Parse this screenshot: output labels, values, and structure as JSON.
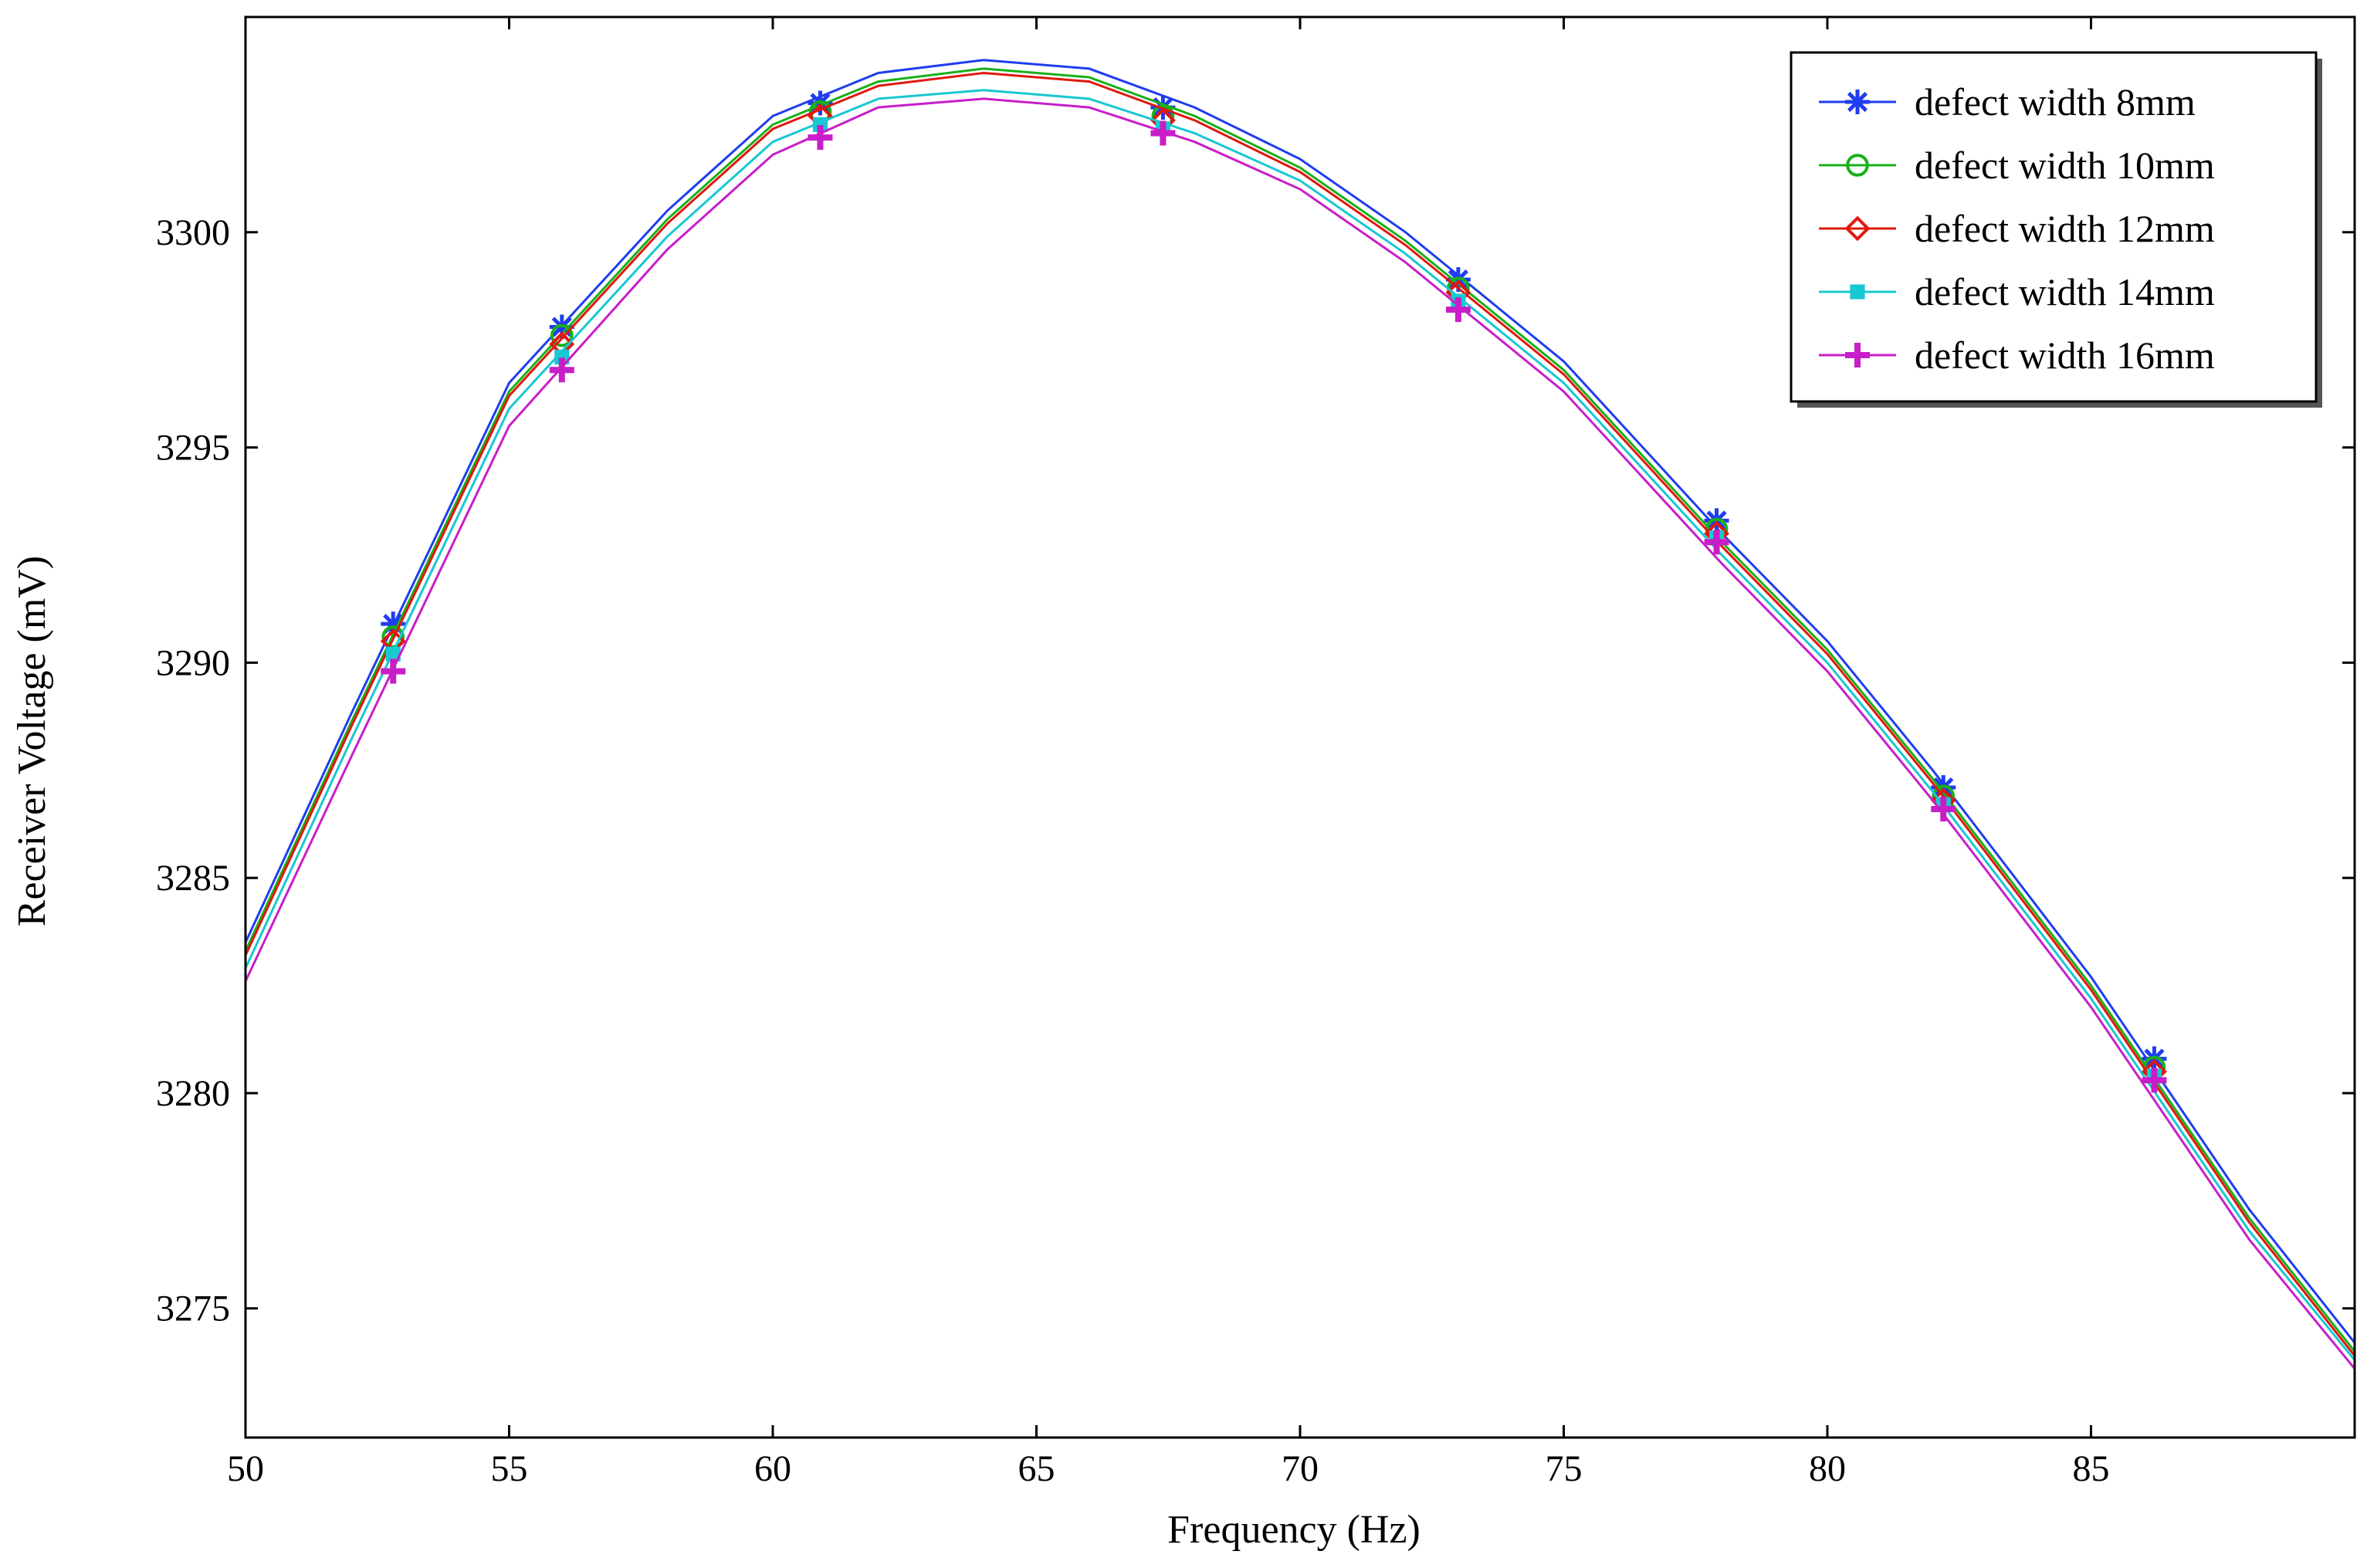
{
  "chart_data": {
    "type": "line",
    "title": "",
    "xlabel": "Frequency (Hz)",
    "ylabel": "Receiver Voltage (mV)",
    "xlim": [
      50,
      90
    ],
    "ylim": [
      3272,
      3305
    ],
    "xticks": [
      50,
      55,
      60,
      65,
      70,
      75,
      80,
      85
    ],
    "yticks": [
      3275,
      3280,
      3285,
      3290,
      3295,
      3300
    ],
    "legend_position": "top-right",
    "grid": false,
    "x": [
      50,
      52,
      55,
      58,
      60,
      62,
      64,
      66,
      68,
      70,
      72,
      75,
      78,
      80,
      82,
      85,
      88,
      90
    ],
    "series": [
      {
        "name": "defect width 8mm",
        "color": "#1f3df0",
        "marker": "asterisk",
        "values": [
          3283.5,
          3288.8,
          3296.5,
          3300.5,
          3302.7,
          3303.7,
          3304.0,
          3303.8,
          3302.9,
          3301.7,
          3300.0,
          3297.0,
          3293.0,
          3290.5,
          3287.5,
          3282.7,
          3277.3,
          3274.2
        ],
        "marker_x": [
          52.8,
          56.0,
          60.9,
          67.4,
          73.0,
          77.9,
          82.2,
          86.2
        ],
        "marker_y": [
          3290.9,
          3297.8,
          3303.0,
          3302.9,
          3298.9,
          3293.3,
          3287.1,
          3280.8
        ]
      },
      {
        "name": "defect width 10mm",
        "color": "#19b019",
        "marker": "circle",
        "values": [
          3283.3,
          3288.6,
          3296.3,
          3300.3,
          3302.5,
          3303.5,
          3303.8,
          3303.6,
          3302.7,
          3301.5,
          3299.8,
          3296.8,
          3292.8,
          3290.3,
          3287.3,
          3282.5,
          3277.1,
          3274.0
        ],
        "marker_x": [
          52.8,
          56.0,
          60.9,
          67.4,
          73.0,
          77.9,
          82.2,
          86.2
        ],
        "marker_y": [
          3290.6,
          3297.6,
          3302.8,
          3302.7,
          3298.7,
          3293.1,
          3286.9,
          3280.6
        ]
      },
      {
        "name": "defect width 12mm",
        "color": "#e0180f",
        "marker": "diamond",
        "values": [
          3283.2,
          3288.5,
          3296.2,
          3300.2,
          3302.4,
          3303.4,
          3303.7,
          3303.5,
          3302.6,
          3301.4,
          3299.7,
          3296.7,
          3292.7,
          3290.2,
          3287.2,
          3282.4,
          3277.0,
          3273.9
        ],
        "marker_x": [
          52.8,
          56.0,
          60.9,
          67.4,
          73.0,
          77.9,
          82.2,
          86.2
        ],
        "marker_y": [
          3290.5,
          3297.4,
          3302.7,
          3302.6,
          3298.6,
          3293.0,
          3286.8,
          3280.5
        ]
      },
      {
        "name": "defect width 14mm",
        "color": "#18c8d2",
        "marker": "square",
        "values": [
          3282.9,
          3288.2,
          3295.9,
          3299.9,
          3302.1,
          3303.1,
          3303.3,
          3303.1,
          3302.3,
          3301.2,
          3299.5,
          3296.5,
          3292.5,
          3290.0,
          3287.0,
          3282.2,
          3276.8,
          3273.8
        ],
        "marker_x": [
          52.8,
          56.0,
          60.9,
          67.4,
          73.0,
          77.9,
          82.2,
          86.2
        ],
        "marker_y": [
          3290.2,
          3297.1,
          3302.5,
          3302.4,
          3298.4,
          3292.9,
          3286.7,
          3280.4
        ]
      },
      {
        "name": "defect width 16mm",
        "color": "#c81ec8",
        "marker": "plus",
        "values": [
          3282.6,
          3287.8,
          3295.5,
          3299.6,
          3301.8,
          3302.9,
          3303.1,
          3302.9,
          3302.1,
          3301.0,
          3299.3,
          3296.3,
          3292.3,
          3289.8,
          3286.8,
          3282.0,
          3276.6,
          3273.6
        ],
        "marker_x": [
          52.8,
          56.0,
          60.9,
          67.4,
          73.0,
          77.9,
          82.2,
          86.2
        ],
        "marker_y": [
          3289.8,
          3296.8,
          3302.2,
          3302.3,
          3298.2,
          3292.8,
          3286.6,
          3280.3
        ]
      }
    ]
  }
}
